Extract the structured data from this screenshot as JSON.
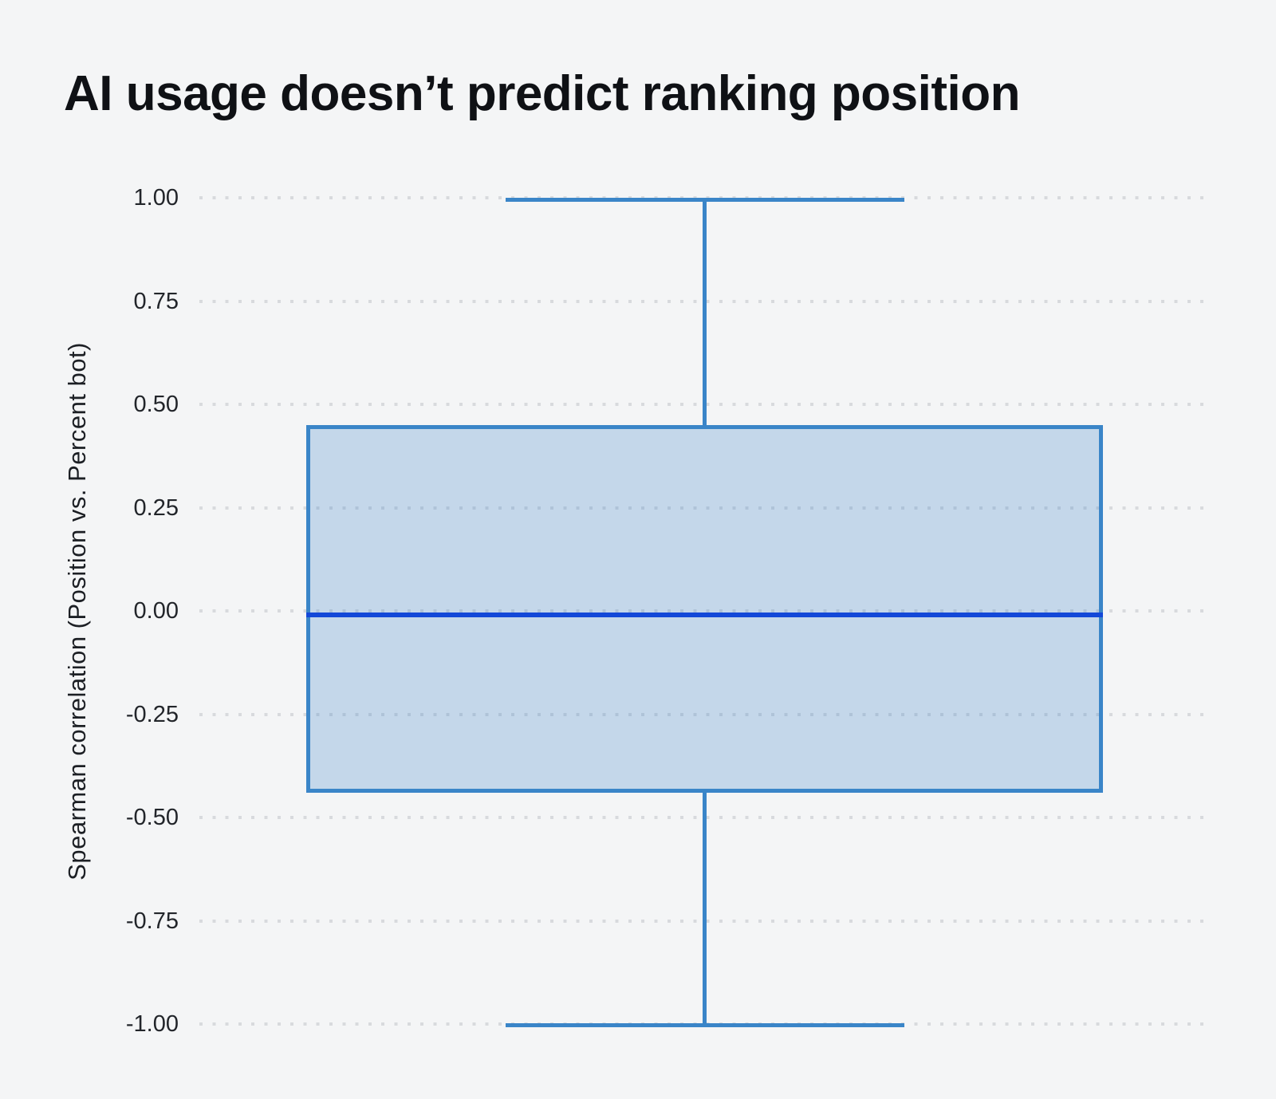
{
  "figure": {
    "title": "AI usage doesn’t predict ranking position"
  },
  "y_axis": {
    "label": "Spearman correlation (Position vs. Percent bot)"
  },
  "colors": {
    "background": "#f4f5f6",
    "gridline": "#d8dadd",
    "box_border": "#3a85c8",
    "box_fill": "rgba(58,133,200,0.26)",
    "median_line": "#1348d8",
    "whisker": "#3a85c8",
    "title_text": "#0f1115",
    "axis_text": "#22252a"
  },
  "chart_data": {
    "type": "box",
    "title": "AI usage doesn’t predict ranking position",
    "xlabel": "",
    "ylabel": "Spearman correlation (Position vs. Percent bot)",
    "ylim": [
      -1.0,
      1.0
    ],
    "ytick_values": [
      1.0,
      0.75,
      0.5,
      0.25,
      0.0,
      -0.25,
      -0.5,
      -0.75,
      -1.0
    ],
    "ytick_labels": [
      "1.00",
      "0.75",
      "0.50",
      "0.25",
      "0.00",
      "-0.25",
      "-0.50",
      "-0.75",
      "-1.00"
    ],
    "grid": "horizontal dotted gridlines at each tick",
    "legend": "none",
    "series": [
      {
        "name": "Position vs. Percent bot",
        "whisker_low": -1.0,
        "q1": -0.44,
        "median": -0.01,
        "q3": 0.45,
        "whisker_high": 1.0,
        "outliers": []
      }
    ]
  }
}
